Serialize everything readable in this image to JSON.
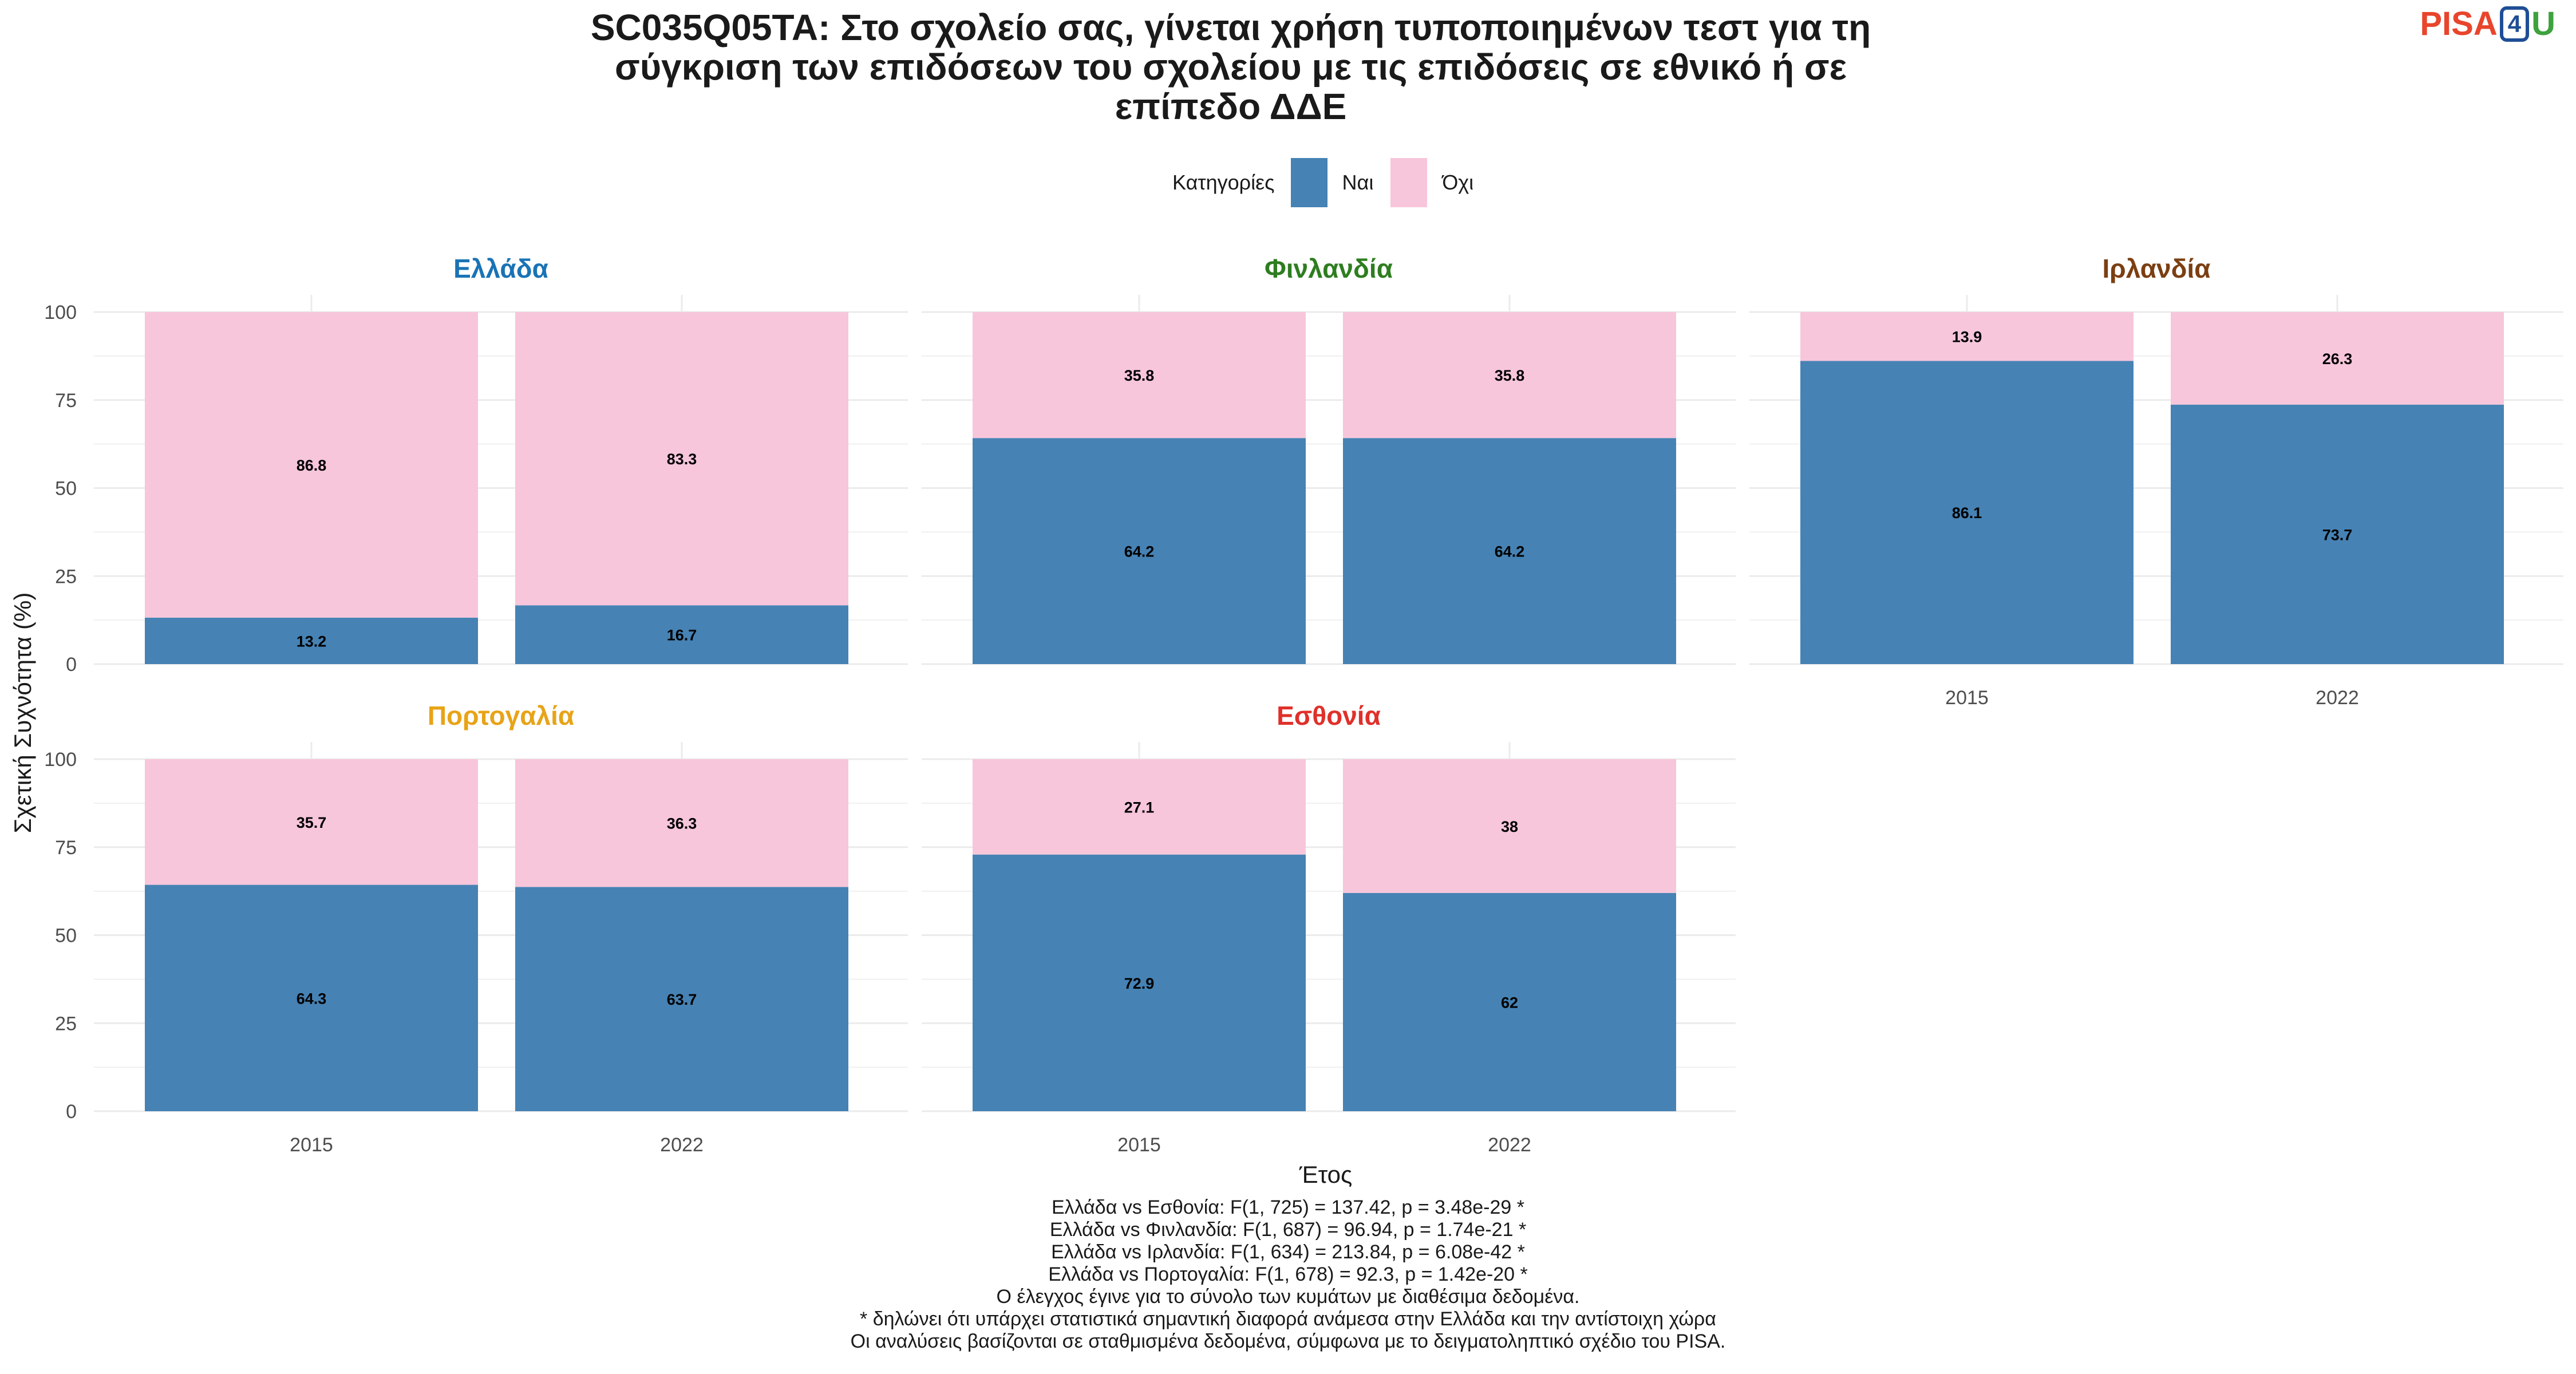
{
  "title_lines": [
    "SC035Q05TA: Στο σχολείο σας, γίνεται χρήση τυποποιημένων τεστ για τη",
    "σύγκριση των επιδόσεων του σχολείου με τις επιδόσεις σε εθνικό ή σε",
    "επίπεδο ΔΔΕ"
  ],
  "logo": {
    "part1": "PISA",
    "part2": "4",
    "part3": "U"
  },
  "colors": {
    "nai": "#4682b4",
    "oxi": "#f7c6db"
  },
  "chart_data": {
    "type": "bar",
    "stacked": true,
    "ylabel": "Σχετική Συχνότητα (%)",
    "xlabel": "Έτος",
    "ylim": [
      0,
      100
    ],
    "yticks": [
      "0",
      "25",
      "50",
      "75",
      "100"
    ],
    "categories": [
      "2015",
      "2022"
    ],
    "legend": {
      "title": "Κατηγορίες",
      "items": [
        "Ναι",
        "Όχι"
      ],
      "position": "top"
    },
    "panels": [
      {
        "name": "Ελλάδα",
        "color": "#1a73b5",
        "series": [
          {
            "name": "Ναι",
            "values": [
              13.2,
              16.7
            ],
            "labels": [
              "13.2",
              "16.7"
            ]
          },
          {
            "name": "Όχι",
            "values": [
              86.8,
              83.3
            ],
            "labels": [
              "86.8",
              "83.3"
            ]
          }
        ]
      },
      {
        "name": "Φινλανδία",
        "color": "#2e7d20",
        "series": [
          {
            "name": "Ναι",
            "values": [
              64.2,
              64.2
            ],
            "labels": [
              "64.2",
              "64.2"
            ]
          },
          {
            "name": "Όχι",
            "values": [
              35.8,
              35.8
            ],
            "labels": [
              "35.8",
              "35.8"
            ]
          }
        ]
      },
      {
        "name": "Ιρλανδία",
        "color": "#7b3f12",
        "series": [
          {
            "name": "Ναι",
            "values": [
              86.1,
              73.7
            ],
            "labels": [
              "86.1",
              "73.7"
            ]
          },
          {
            "name": "Όχι",
            "values": [
              13.9,
              26.3
            ],
            "labels": [
              "13.9",
              "26.3"
            ]
          }
        ]
      },
      {
        "name": "Πορτογαλία",
        "color": "#e8a317",
        "series": [
          {
            "name": "Ναι",
            "values": [
              64.3,
              63.7
            ],
            "labels": [
              "64.3",
              "63.7"
            ]
          },
          {
            "name": "Όχι",
            "values": [
              35.7,
              36.3
            ],
            "labels": [
              "35.7",
              "36.3"
            ]
          }
        ]
      },
      {
        "name": "Εσθονία",
        "color": "#e0302a",
        "series": [
          {
            "name": "Ναι",
            "values": [
              72.9,
              62
            ],
            "labels": [
              "72.9",
              "62"
            ]
          },
          {
            "name": "Όχι",
            "values": [
              27.1,
              38
            ],
            "labels": [
              "27.1",
              "38"
            ]
          }
        ]
      }
    ]
  },
  "footer_lines": [
    "Ελλάδα vs Εσθονία: F(1, 725) = 137.42, p = 3.48e-29 *",
    "Ελλάδα vs Φινλανδία: F(1, 687) = 96.94, p = 1.74e-21 *",
    "Ελλάδα vs Ιρλανδία: F(1, 634) = 213.84, p = 6.08e-42 *",
    "Ελλάδα vs Πορτογαλία: F(1, 678) = 92.3, p = 1.42e-20 *",
    "Ο έλεγχος έγινε για το σύνολο των κυμάτων με διαθέσιμα δεδομένα.",
    "* δηλώνει ότι υπάρχει στατιστικά σημαντική διαφορά ανάμεσα στην Ελλάδα και την αντίστοιχη χώρα",
    "Οι αναλύσεις βασίζονται σε σταθμισμένα δεδομένα, σύμφωνα με το δειγματοληπτικό σχέδιο του PISA."
  ]
}
